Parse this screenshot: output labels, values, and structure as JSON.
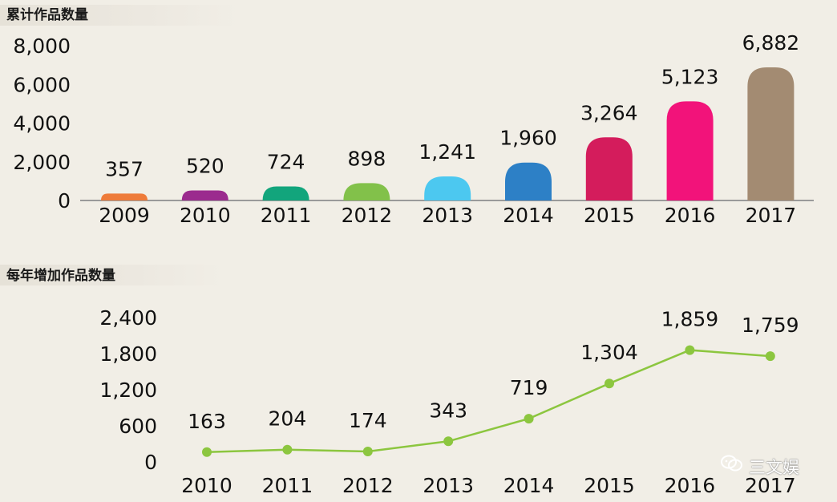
{
  "chart_data": [
    {
      "type": "bar",
      "title": "累计作品数量",
      "categories": [
        "2009",
        "2010",
        "2011",
        "2012",
        "2013",
        "2014",
        "2015",
        "2016",
        "2017"
      ],
      "values": [
        357,
        520,
        724,
        898,
        1241,
        1960,
        3264,
        5123,
        6882
      ],
      "value_labels": [
        "357",
        "520",
        "724",
        "898",
        "1,241",
        "1,960",
        "3,264",
        "5,123",
        "6,882"
      ],
      "colors": [
        "#ee7b3a",
        "#9b2b8e",
        "#12a57c",
        "#82c14a",
        "#4cc8f0",
        "#2d80c6",
        "#d41c5c",
        "#f2137a",
        "#a38b72"
      ],
      "yticks": [
        "0",
        "2,000",
        "4,000",
        "6,000",
        "8,000"
      ],
      "ytick_values": [
        0,
        2000,
        4000,
        6000,
        8000
      ],
      "ylim": [
        0,
        8000
      ],
      "xlabel": "",
      "ylabel": ""
    },
    {
      "type": "line",
      "title": "每年增加作品数量",
      "categories": [
        "2010",
        "2011",
        "2012",
        "2013",
        "2014",
        "2015",
        "2016",
        "2017"
      ],
      "values": [
        163,
        204,
        174,
        343,
        719,
        1304,
        1859,
        1759
      ],
      "value_labels": [
        "163",
        "204",
        "174",
        "343",
        "719",
        "1,304",
        "1,859",
        "1,759"
      ],
      "line_color": "#8cc63f",
      "yticks": [
        "0",
        "600",
        "1,200",
        "1,800",
        "2,400"
      ],
      "ytick_values": [
        0,
        600,
        1200,
        1800,
        2400
      ],
      "ylim": [
        0,
        2400
      ],
      "xlabel": "",
      "ylabel": ""
    }
  ],
  "watermark": "三文娱"
}
